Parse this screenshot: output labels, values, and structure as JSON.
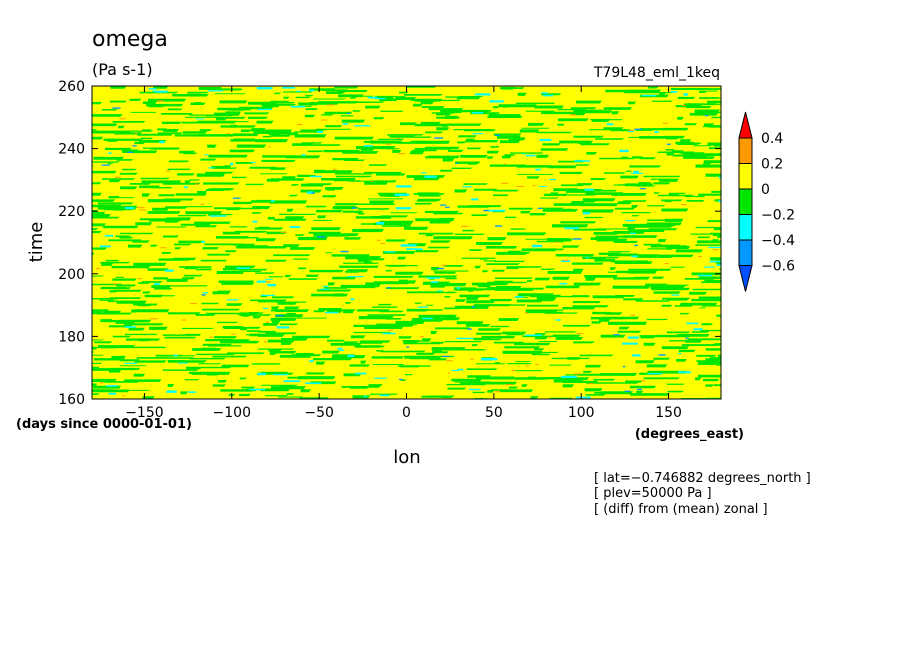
{
  "chart_data": {
    "type": "heatmap",
    "title": "omega",
    "units": "(Pa s-1)",
    "run_label": "T79L48_eml_1keq",
    "xlabel": "lon",
    "xunits": "(degrees_east)",
    "ylabel": "time",
    "yunits": "(days since 0000-01-01)",
    "xlim": [
      -180,
      180
    ],
    "ylim": [
      160,
      260
    ],
    "xticks": [
      -150,
      -100,
      -50,
      0,
      50,
      100,
      150
    ],
    "yticks": [
      160,
      180,
      200,
      220,
      240,
      260
    ],
    "colorbar": {
      "levels": [
        -0.6,
        -0.4,
        -0.2,
        0,
        0.2,
        0.4
      ],
      "tick_labels": [
        "0.4",
        "0.2",
        "0",
        "−0.2",
        "−0.4",
        "−0.6"
      ],
      "colors": [
        "#ff0000",
        "#ff9900",
        "#ffff00",
        "#00e600",
        "#00ffff",
        "#0099ff",
        "#0050ff"
      ]
    },
    "notes": [
      "[ lat=−0.746882 degrees_north ]",
      "[ plev=50000 Pa ]",
      "[ (diff) from (mean) zonal ]"
    ]
  }
}
